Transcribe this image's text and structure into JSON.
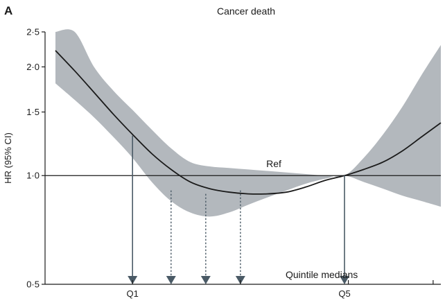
{
  "chart_data": {
    "type": "line",
    "panel_label": "A",
    "title": "Cancer death",
    "xlabel": "",
    "ylabel": "HR (95% CI)",
    "y_scale": "log",
    "ylim": [
      0.5,
      2.5
    ],
    "y_ticks": [
      {
        "value": 0.5,
        "label": "0·5"
      },
      {
        "value": 1.0,
        "label": "1·0"
      },
      {
        "value": 1.5,
        "label": "1·5"
      },
      {
        "value": 2.0,
        "label": "2·0"
      },
      {
        "value": 2.5,
        "label": "2·5"
      }
    ],
    "xlim": [
      0,
      100
    ],
    "x_ticks": [
      20,
      48,
      76,
      98
    ],
    "reference_line": 1.0,
    "series": [
      {
        "kind": "estimate",
        "x": [
          0,
          5,
          10,
          15,
          20,
          25,
          30,
          35,
          40,
          45,
          50,
          55,
          60,
          65,
          70,
          75,
          80,
          85,
          90,
          95,
          100
        ],
        "y": [
          2.22,
          1.95,
          1.7,
          1.48,
          1.3,
          1.15,
          1.04,
          0.96,
          0.92,
          0.9,
          0.89,
          0.89,
          0.9,
          0.93,
          0.97,
          1.0,
          1.04,
          1.09,
          1.17,
          1.28,
          1.4
        ]
      }
    ],
    "ci_band": {
      "x": [
        0,
        5,
        10,
        15,
        20,
        25,
        30,
        35,
        40,
        45,
        50,
        55,
        60,
        65,
        70,
        75,
        80,
        85,
        90,
        95,
        100
      ],
      "lower": [
        1.8,
        1.62,
        1.45,
        1.28,
        1.12,
        0.96,
        0.85,
        0.79,
        0.77,
        0.79,
        0.83,
        0.87,
        0.91,
        0.95,
        0.98,
        1.0,
        0.96,
        0.92,
        0.88,
        0.85,
        0.82
      ],
      "upper": [
        2.5,
        2.5,
        2.0,
        1.72,
        1.52,
        1.34,
        1.19,
        1.09,
        1.06,
        1.05,
        1.04,
        1.03,
        1.02,
        1.01,
        1.0,
        1.0,
        1.12,
        1.3,
        1.55,
        1.9,
        2.3
      ]
    },
    "quintile_medians": {
      "label": "Quintile medians",
      "markers": [
        {
          "x": 20,
          "label": "Q1",
          "style": "solid",
          "from_y": 1.29
        },
        {
          "x": 30,
          "label": "",
          "style": "dotted",
          "from_y": 0.91
        },
        {
          "x": 39,
          "label": "",
          "style": "dotted",
          "from_y": 0.89
        },
        {
          "x": 48,
          "label": "",
          "style": "dotted",
          "from_y": 0.91
        },
        {
          "x": 75,
          "label": "Q5",
          "style": "solid",
          "from_y": 1.0
        }
      ],
      "ref_label": "Ref"
    },
    "colors": {
      "band": "#b3b8bd",
      "line": "#1a1a1a",
      "arrow": "#4a5a66"
    },
    "grid": false
  }
}
